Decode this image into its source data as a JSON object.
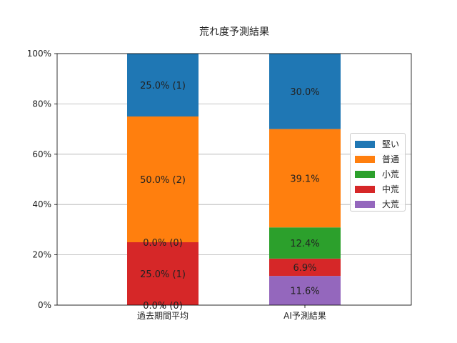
{
  "chart_data": {
    "type": "bar",
    "stacked": true,
    "title": "荒れ度予測結果",
    "xlabel": "",
    "ylabel": "",
    "categories": [
      "過去期間平均",
      "AI予測結果"
    ],
    "ylim": [
      0,
      100
    ],
    "yticks": [
      "0%",
      "20%",
      "40%",
      "60%",
      "80%",
      "100%"
    ],
    "grid": true,
    "legend_position": "right",
    "series": [
      {
        "name": "大荒",
        "color": "#9467bd",
        "values": [
          0.0,
          11.6
        ],
        "labels": [
          "0.0% (0)",
          "11.6%"
        ]
      },
      {
        "name": "中荒",
        "color": "#d62728",
        "values": [
          25.0,
          6.9
        ],
        "labels": [
          "25.0% (1)",
          "6.9%"
        ]
      },
      {
        "name": "小荒",
        "color": "#2ca02c",
        "values": [
          0.0,
          12.4
        ],
        "labels": [
          "0.0% (0)",
          "12.4%"
        ]
      },
      {
        "name": "普通",
        "color": "#ff7f0e",
        "values": [
          50.0,
          39.1
        ],
        "labels": [
          "50.0% (2)",
          "39.1%"
        ]
      },
      {
        "name": "堅い",
        "color": "#1f77b4",
        "values": [
          25.0,
          30.0
        ],
        "labels": [
          "25.0% (1)",
          "30.0%"
        ]
      }
    ],
    "legend_order": [
      "堅い",
      "普通",
      "小荒",
      "中荒",
      "大荒"
    ]
  }
}
